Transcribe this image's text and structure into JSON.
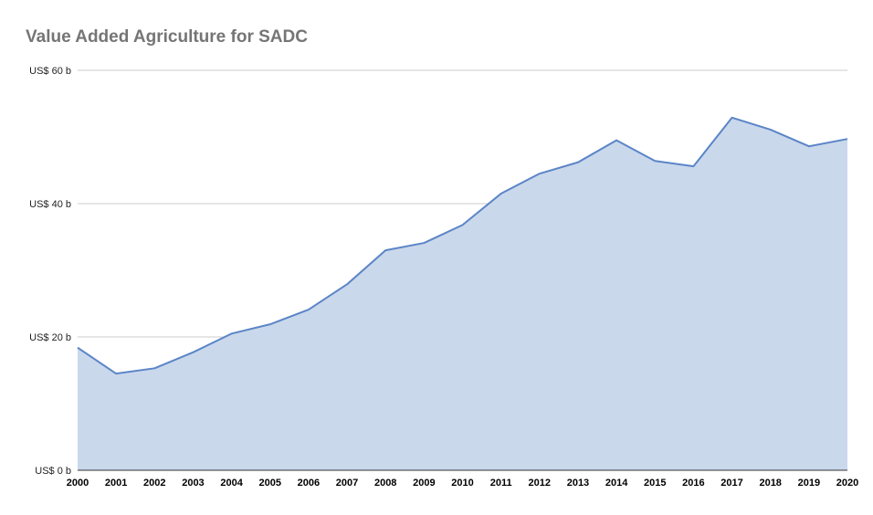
{
  "chart_data": {
    "type": "area",
    "title": "Value Added Agriculture for SADC",
    "xlabel": "",
    "ylabel": "",
    "categories": [
      "2000",
      "2001",
      "2002",
      "2003",
      "2004",
      "2005",
      "2006",
      "2007",
      "2008",
      "2009",
      "2010",
      "2011",
      "2012",
      "2013",
      "2014",
      "2015",
      "2016",
      "2017",
      "2018",
      "2019",
      "2020"
    ],
    "values": [
      18.4,
      14.5,
      15.3,
      17.7,
      20.5,
      21.9,
      24.1,
      27.9,
      33.0,
      34.1,
      36.8,
      41.5,
      44.5,
      46.2,
      49.5,
      46.4,
      45.6,
      52.9,
      51.1,
      48.6,
      49.7
    ],
    "ylim": [
      0,
      60
    ],
    "yticks": [
      0,
      20,
      40,
      60
    ],
    "ytick_labels": [
      "US$ 0 b",
      "US$ 20 b",
      "US$ 40 b",
      "US$ 60 b"
    ],
    "grid": true,
    "legend": "none",
    "colors": {
      "line": "#5b85c6",
      "fill": "#cad8ec",
      "grid": "#cccccc",
      "axis": "#333333"
    }
  }
}
